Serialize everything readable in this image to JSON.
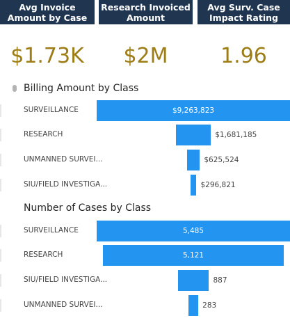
{
  "kpis": [
    {
      "title": "Avg Invoice Amount by Case",
      "value": "$1.73K"
    },
    {
      "title": "Research Invoiced Amount",
      "value": "$2M"
    },
    {
      "title": "Avg Surv. Case Impact Rating",
      "value": "1.96"
    }
  ],
  "colors": {
    "header_bg": "#1f3550",
    "kpi_value": "#9c7d16",
    "bar": "#2394f0"
  },
  "chart_data": [
    {
      "type": "bar",
      "title": "Billing Amount by Class",
      "categories": [
        "SURVEILLANCE",
        "RESEARCH",
        "UNMANNED SURVEI...",
        "SIU/FIELD INVESTIGA..."
      ],
      "values": [
        9263823,
        1681185,
        625524,
        296821
      ],
      "data_labels": [
        "$9,263,823",
        "$1,681,185",
        "$625,524",
        "$296,821"
      ]
    },
    {
      "type": "bar",
      "title": "Number of Cases by Class",
      "categories": [
        "SURVEILLANCE",
        "RESEARCH",
        "SIU/FIELD INVESTIGA...",
        "UNMANNED SURVEI..."
      ],
      "values": [
        5485,
        5121,
        887,
        283
      ],
      "data_labels": [
        "5,485",
        "5,121",
        "887",
        "283"
      ]
    }
  ]
}
